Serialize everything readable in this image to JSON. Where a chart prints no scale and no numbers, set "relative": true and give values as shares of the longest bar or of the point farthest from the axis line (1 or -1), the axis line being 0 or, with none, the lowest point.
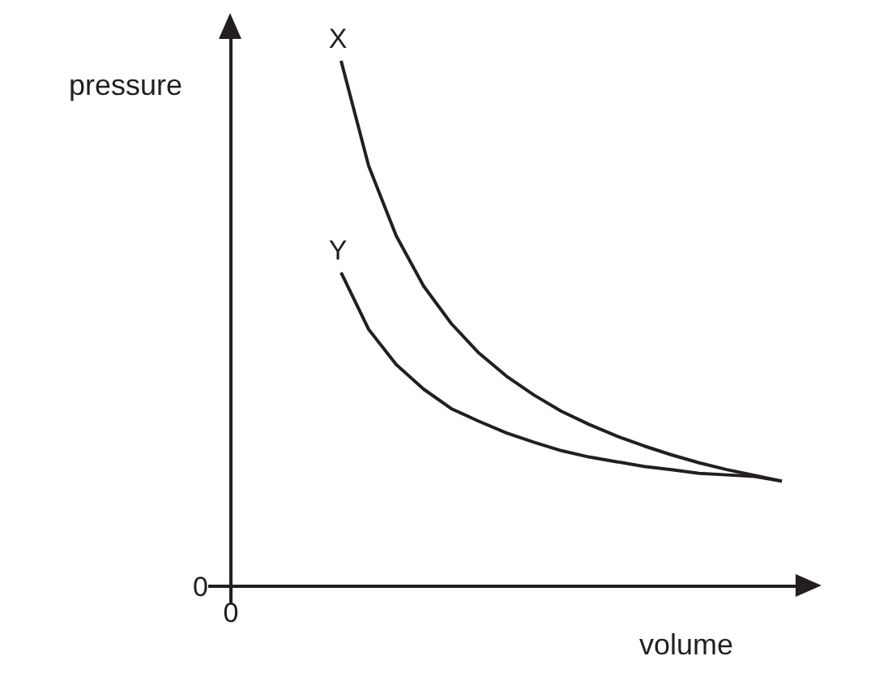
{
  "chart_data": {
    "type": "line",
    "relative": true,
    "xlabel": "volume",
    "ylabel": "pressure",
    "categories": [
      null,
      null,
      null,
      null,
      null,
      null,
      null,
      null,
      null,
      null,
      null,
      null,
      null,
      null,
      null,
      null,
      null,
      null,
      null,
      null,
      null
    ],
    "series": [
      {
        "name": "X",
        "color": "#231f20",
        "values": [
          null,
          null,
          null,
          null,
          1,
          0.8,
          0.667,
          0.571,
          0.5,
          0.444,
          0.4,
          0.364,
          0.333,
          0.308,
          0.286,
          0.267,
          0.25,
          0.235,
          0.222,
          0.211,
          0.2
        ]
      },
      {
        "name": "Y",
        "color": "#231f20",
        "values": [
          null,
          null,
          null,
          null,
          0.597,
          0.489,
          0.422,
          0.375,
          0.338,
          0.314,
          0.292,
          0.274,
          0.258,
          0.246,
          0.237,
          0.228,
          0.222,
          0.215,
          0.212,
          0.209,
          0.2
        ]
      }
    ],
    "annotations": [
      "0",
      "0"
    ]
  }
}
